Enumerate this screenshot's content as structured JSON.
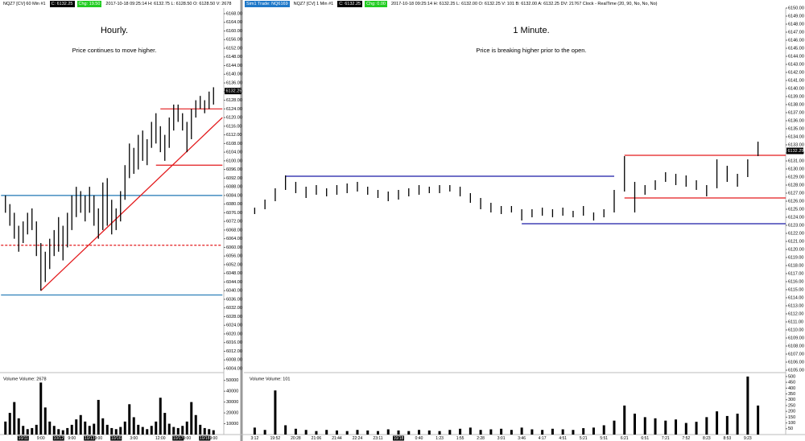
{
  "chart_data": [
    {
      "type": "ohlc",
      "header": [
        {
          "text": "NQZ7 [CV]  60 Min  #1"
        },
        {
          "text": "C: 6132.25",
          "color": "#000000"
        },
        {
          "text": "Chg: 19.50",
          "color": "#22cc22"
        },
        {
          "text": "2017-10-18 09:25:14 H: 6132.75 L: 6128.50 O: 6128.50 V: 2678"
        }
      ],
      "title": "Hourly.",
      "subtitle": "Price continues to move higher.",
      "volume_label": "Volume  Volume: 2678",
      "categories": [
        null,
        null,
        null,
        null,
        "10/11",
        null,
        null,
        null,
        "9:00",
        null,
        null,
        null,
        "10/12",
        null,
        null,
        "9:00",
        null,
        null,
        null,
        "10/13",
        null,
        "9:00",
        null,
        null,
        null,
        "10/16",
        null,
        null,
        null,
        "3:00",
        null,
        null,
        null,
        null,
        null,
        "12:00",
        null,
        null,
        null,
        "10/17",
        null,
        "9:00",
        null,
        null,
        null,
        "10/18",
        null,
        "9:00"
      ],
      "high": [
        6084,
        6080,
        6076,
        6070,
        6072,
        6076,
        6078,
        6072,
        6062,
        6058,
        6064,
        6068,
        6074,
        6070,
        6076,
        6084,
        6088,
        6086,
        6084,
        6088,
        6084,
        6078,
        6090,
        6092,
        6082,
        6078,
        6086,
        6098,
        6108,
        6106,
        6112,
        6114,
        6110,
        6118,
        6122,
        6116,
        6112,
        6120,
        6126,
        6126,
        6122,
        6118,
        6124,
        6128,
        6130,
        6128,
        6132,
        6134
      ],
      "low": [
        6076,
        6070,
        6064,
        6058,
        6062,
        6066,
        6068,
        6056,
        6040,
        6044,
        6050,
        6056,
        6058,
        6054,
        6060,
        6068,
        6074,
        6076,
        6072,
        6076,
        6070,
        6064,
        6068,
        6070,
        6066,
        6068,
        6072,
        6082,
        6092,
        6094,
        6096,
        6100,
        6098,
        6106,
        6108,
        6104,
        6100,
        6106,
        6114,
        6118,
        6114,
        6104,
        6110,
        6120,
        6124,
        6122,
        6124,
        6126
      ],
      "volume": [
        12000,
        20000,
        30000,
        15000,
        8000,
        5000,
        6000,
        9000,
        48000,
        25000,
        12000,
        8000,
        5000,
        4000,
        6000,
        9000,
        14000,
        18000,
        12000,
        8000,
        10000,
        32000,
        15000,
        9000,
        6000,
        5000,
        7000,
        12000,
        28000,
        16000,
        9000,
        7000,
        5000,
        8000,
        12000,
        34000,
        20000,
        10000,
        7000,
        6000,
        8000,
        12000,
        30000,
        18000,
        9000,
        6000,
        5000,
        4000
      ],
      "color": "#000000",
      "ylim": [
        6004,
        6168
      ],
      "yticks": [
        {
          "value": 6004,
          "label": "6004.00"
        },
        {
          "value": 6008,
          "label": "6008.00"
        },
        {
          "value": 6012,
          "label": "6012.00"
        },
        {
          "value": 6016,
          "label": "6016.00"
        },
        {
          "value": 6020,
          "label": "6020.00"
        },
        {
          "value": 6024,
          "label": "6024.00"
        },
        {
          "value": 6028,
          "label": "6028.00"
        },
        {
          "value": 6032,
          "label": "6032.00"
        },
        {
          "value": 6036,
          "label": "6036.00"
        },
        {
          "value": 6040,
          "label": "6040.00"
        },
        {
          "value": 6044,
          "label": "6044.00"
        },
        {
          "value": 6048,
          "label": "6048.00"
        },
        {
          "value": 6052,
          "label": "6052.00"
        },
        {
          "value": 6056,
          "label": "6056.00"
        },
        {
          "value": 6060,
          "label": "6060.00"
        },
        {
          "value": 6064,
          "label": "6064.00"
        },
        {
          "value": 6068,
          "label": "6068.00"
        },
        {
          "value": 6072,
          "label": "6072.00"
        },
        {
          "value": 6076,
          "label": "6076.00"
        },
        {
          "value": 6080,
          "label": "6080.00"
        },
        {
          "value": 6084,
          "label": "6084.00"
        },
        {
          "value": 6088,
          "label": "6088.00"
        },
        {
          "value": 6092,
          "label": "6092.00"
        },
        {
          "value": 6096,
          "label": "6096.00"
        },
        {
          "value": 6100,
          "label": "6100.00"
        },
        {
          "value": 6104,
          "label": "6104.00"
        },
        {
          "value": 6108,
          "label": "6108.00"
        },
        {
          "value": 6112,
          "label": "6112.00"
        },
        {
          "value": 6116,
          "label": "6116.00"
        },
        {
          "value": 6120,
          "label": "6120.00"
        },
        {
          "value": 6124,
          "label": "6124.00"
        },
        {
          "value": 6128,
          "label": "6128.00"
        },
        {
          "value": 6132,
          "label": "6132.00"
        },
        {
          "value": 6136,
          "label": "6136.00"
        },
        {
          "value": 6140,
          "label": "6140.00"
        },
        {
          "value": 6144,
          "label": "6144.00"
        },
        {
          "value": 6148,
          "label": "6148.00"
        },
        {
          "value": 6152,
          "label": "6152.00"
        },
        {
          "value": 6156,
          "label": "6156.00"
        },
        {
          "value": 6160,
          "label": "6160.00"
        },
        {
          "value": 6164,
          "label": "6164.00"
        },
        {
          "value": 6168,
          "label": "6168.00"
        }
      ],
      "vlim": [
        0,
        52000
      ],
      "vticks": [
        10000,
        20000,
        30000,
        40000,
        50000
      ],
      "last_price": 6132.25,
      "levels": [
        {
          "value": 6084,
          "from": -1,
          "to": 49,
          "color": "#1f77b4"
        },
        {
          "value": 6038,
          "from": -1,
          "to": 49,
          "color": "#1f77b4"
        },
        {
          "value": 6061,
          "from": -1,
          "to": 49,
          "color": "#e31a1c",
          "dashed": true
        },
        {
          "value": 6098,
          "from": 34,
          "to": 49,
          "color": "#e31a1c"
        },
        {
          "value": 6124,
          "from": 35,
          "to": 49,
          "color": "#e31a1c"
        }
      ],
      "trendline": {
        "from": [
          8,
          6040
        ],
        "to": [
          49,
          6120
        ],
        "color": "#e31a1c"
      }
    },
    {
      "type": "ohlc",
      "header": [
        {
          "text": "Sim1  Trade: NQ6169",
          "color": "#1f78c8"
        },
        {
          "text": "NQZ7 [CV]  1 Min  #1"
        },
        {
          "text": "C: 6132.25",
          "color": "#000000"
        },
        {
          "text": "Chg: 0.00",
          "color": "#22cc22"
        },
        {
          "text": "2017-10-18 09:25:14 H: 6132.25 L: 6132.00 O: 6132.25 V: 101 B: 6132.00 A: 6132.25 DV: 21767 Clock - RealTime (20, 90, No, No, No)"
        }
      ],
      "title": "1 Minute.",
      "subtitle": "Price is breaking higher prior to the open.",
      "volume_label": "Volume  Volume: 101",
      "categories": [
        "3:12",
        null,
        "19:52",
        null,
        "20:28",
        null,
        "21:06",
        null,
        "21:44",
        null,
        "22:24",
        null,
        "23:11",
        null,
        "10/18",
        null,
        "0:40",
        null,
        "1:23",
        null,
        "1:55",
        null,
        "2:28",
        null,
        "3:01",
        null,
        "3:46",
        null,
        "4:17",
        null,
        "4:51",
        null,
        "5:21",
        null,
        "5:51",
        null,
        "6:21",
        null,
        "6:51",
        null,
        "7:21",
        null,
        "7:52",
        null,
        "8:23",
        null,
        "8:53",
        null,
        "9:23",
        null
      ],
      "high": [
        6125.2,
        6126.2,
        6127.6,
        6129.2,
        6128.4,
        6127.8,
        6128,
        6127.6,
        6128,
        6128.2,
        6128.4,
        6127.8,
        6127.4,
        6127.2,
        6127.4,
        6127.6,
        6128,
        6127.8,
        6128,
        6128,
        6127.8,
        6127,
        6126.4,
        6125.8,
        6125.4,
        6125.4,
        6125,
        6125,
        6125.2,
        6125,
        6125.2,
        6124.8,
        6125.4,
        6124.6,
        6125,
        6127.4,
        6131.6,
        6128.4,
        6128,
        6128.6,
        6129.6,
        6129.4,
        6129.2,
        6128.6,
        6128,
        6131.2,
        6130.4,
        6129.4,
        6131.2,
        6133.4
      ],
      "low": [
        6124.4,
        6125,
        6126,
        6127.4,
        6127,
        6126.4,
        6126.8,
        6126.6,
        6126.8,
        6127,
        6127.2,
        6126.8,
        6126.4,
        6126,
        6126.2,
        6126.6,
        6126.8,
        6127,
        6127,
        6127.2,
        6126.6,
        6125.8,
        6125,
        6124.6,
        6124.4,
        6124.6,
        6123.6,
        6124,
        6124.2,
        6124,
        6124.2,
        6124,
        6124.2,
        6123.6,
        6124,
        6124.6,
        6127.2,
        6124.6,
        6126.8,
        6127.4,
        6128.4,
        6128,
        6127.8,
        6127.4,
        6126.6,
        6127.6,
        6128.4,
        6127.8,
        6129,
        6131.6
      ],
      "volume": [
        60,
        40,
        380,
        80,
        50,
        40,
        30,
        40,
        35,
        30,
        40,
        35,
        30,
        45,
        35,
        30,
        40,
        35,
        30,
        40,
        50,
        60,
        40,
        45,
        50,
        40,
        60,
        45,
        40,
        50,
        45,
        40,
        55,
        60,
        80,
        120,
        250,
        180,
        150,
        140,
        120,
        130,
        100,
        110,
        150,
        200,
        160,
        180,
        500,
        250
      ],
      "color": "#000000",
      "ylim": [
        6105,
        6150
      ],
      "yticks": [
        {
          "value": 6105,
          "label": "6105.00"
        },
        {
          "value": 6106,
          "label": "6106.00"
        },
        {
          "value": 6107,
          "label": "6107.00"
        },
        {
          "value": 6108,
          "label": "6108.00"
        },
        {
          "value": 6109,
          "label": "6109.00"
        },
        {
          "value": 6110,
          "label": "6110.00"
        },
        {
          "value": 6111,
          "label": "6111.00"
        },
        {
          "value": 6112,
          "label": "6112.00"
        },
        {
          "value": 6113,
          "label": "6113.00"
        },
        {
          "value": 6114,
          "label": "6114.00"
        },
        {
          "value": 6115,
          "label": "6115.00"
        },
        {
          "value": 6116,
          "label": "6116.00"
        },
        {
          "value": 6117,
          "label": "6117.00"
        },
        {
          "value": 6118,
          "label": "6118.00"
        },
        {
          "value": 6119,
          "label": "6119.00"
        },
        {
          "value": 6120,
          "label": "6120.00"
        },
        {
          "value": 6121,
          "label": "6121.00"
        },
        {
          "value": 6122,
          "label": "6122.00"
        },
        {
          "value": 6123,
          "label": "6123.00"
        },
        {
          "value": 6124,
          "label": "6124.00"
        },
        {
          "value": 6125,
          "label": "6125.00"
        },
        {
          "value": 6126,
          "label": "6126.00"
        },
        {
          "value": 6127,
          "label": "6127.00"
        },
        {
          "value": 6128,
          "label": "6128.00"
        },
        {
          "value": 6129,
          "label": "6129.00"
        },
        {
          "value": 6130,
          "label": "6130.00"
        },
        {
          "value": 6131,
          "label": "6131.00"
        },
        {
          "value": 6132,
          "label": "6132.00"
        },
        {
          "value": 6133,
          "label": "6133.00"
        },
        {
          "value": 6134,
          "label": "6134.00"
        },
        {
          "value": 6135,
          "label": "6135.00"
        },
        {
          "value": 6136,
          "label": "6136.00"
        },
        {
          "value": 6137,
          "label": "6137.00"
        },
        {
          "value": 6138,
          "label": "6138.00"
        },
        {
          "value": 6139,
          "label": "6139.00"
        },
        {
          "value": 6140,
          "label": "6140.00"
        },
        {
          "value": 6141,
          "label": "6141.00"
        },
        {
          "value": 6142,
          "label": "6142.00"
        },
        {
          "value": 6143,
          "label": "6143.00"
        },
        {
          "value": 6144,
          "label": "6144.00"
        },
        {
          "value": 6145,
          "label": "6145.00"
        },
        {
          "value": 6146,
          "label": "6146.00"
        },
        {
          "value": 6147,
          "label": "6147.00"
        },
        {
          "value": 6148,
          "label": "6148.00"
        },
        {
          "value": 6149,
          "label": "6149.00"
        },
        {
          "value": 6150,
          "label": "6150.00"
        }
      ],
      "vlim": [
        0,
        520
      ],
      "vticks": [
        50,
        100,
        150,
        200,
        250,
        300,
        350,
        400,
        450,
        500
      ],
      "last_price": 6132.25,
      "levels": [
        {
          "value": 6129.1,
          "from": 3,
          "to": 35,
          "color": "#1a1aa8"
        },
        {
          "value": 6123.2,
          "from": 26,
          "to": 52,
          "color": "#1a1aa8"
        },
        {
          "value": 6131.7,
          "from": 36,
          "to": 52,
          "color": "#e31a1c"
        },
        {
          "value": 6126.4,
          "from": 36,
          "to": 52,
          "color": "#e31a1c"
        }
      ]
    }
  ]
}
